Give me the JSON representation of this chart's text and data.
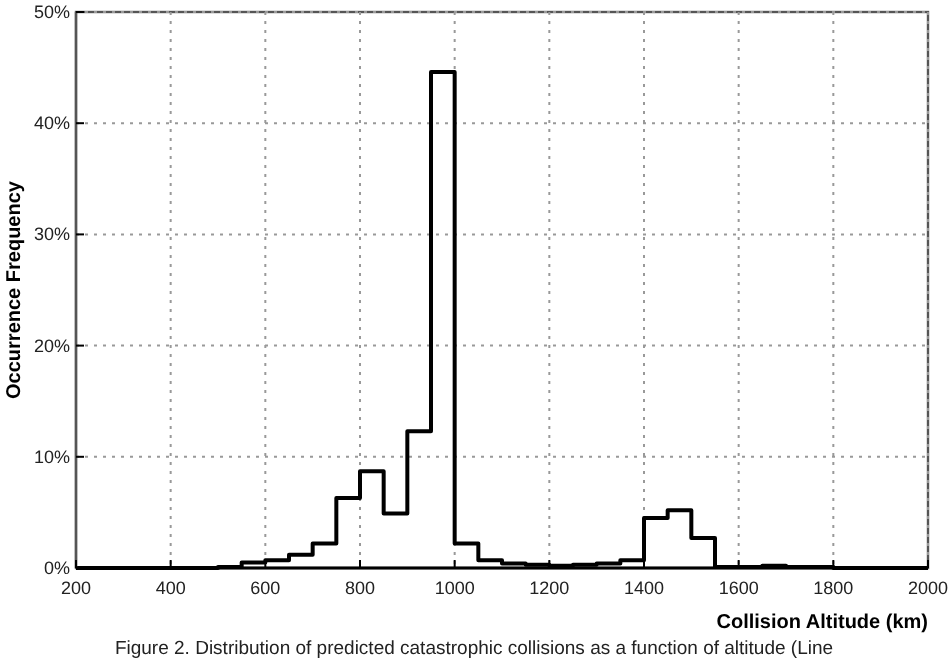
{
  "chart_data": {
    "type": "histogram",
    "xlabel": "Collision Altitude (km)",
    "ylabel": "Occurrence Frequency",
    "annotations": [
      "Figure 2. Distribution of predicted catastrophic collisions as a function of altitude (Line"
    ],
    "bins": [
      200,
      250,
      300,
      350,
      400,
      450,
      500,
      550,
      600,
      650,
      700,
      750,
      800,
      850,
      900,
      950,
      1000,
      1050,
      1100,
      1150,
      1200,
      1250,
      1300,
      1350,
      1400,
      1450,
      1500,
      1550,
      1600,
      1650,
      1700,
      1750,
      1800,
      1850,
      1900,
      1950,
      2000
    ],
    "values": [
      0,
      0,
      0,
      0,
      0,
      0,
      0.1,
      0.5,
      0.7,
      1.2,
      2.2,
      6.3,
      8.7,
      4.9,
      12.3,
      44.6,
      2.2,
      0.7,
      0.4,
      0.3,
      0.2,
      0.3,
      0.4,
      0.7,
      4.5,
      5.2,
      2.7,
      0.1,
      0.1,
      0.2,
      0.1,
      0.1,
      0,
      0,
      0,
      0
    ],
    "color": "#000000",
    "xlim": [
      200,
      2000
    ],
    "xticks": [
      200,
      400,
      600,
      800,
      1000,
      1200,
      1400,
      1600,
      1800,
      2000
    ],
    "ylim": [
      0,
      50
    ],
    "yticks": [
      {
        "value": 0,
        "label": "0%"
      },
      {
        "value": 10,
        "label": "10%"
      },
      {
        "value": 20,
        "label": "20%"
      },
      {
        "value": 30,
        "label": "30%"
      },
      {
        "value": 40,
        "label": "40%"
      },
      {
        "value": 50,
        "label": "50%"
      }
    ],
    "grid": true
  }
}
